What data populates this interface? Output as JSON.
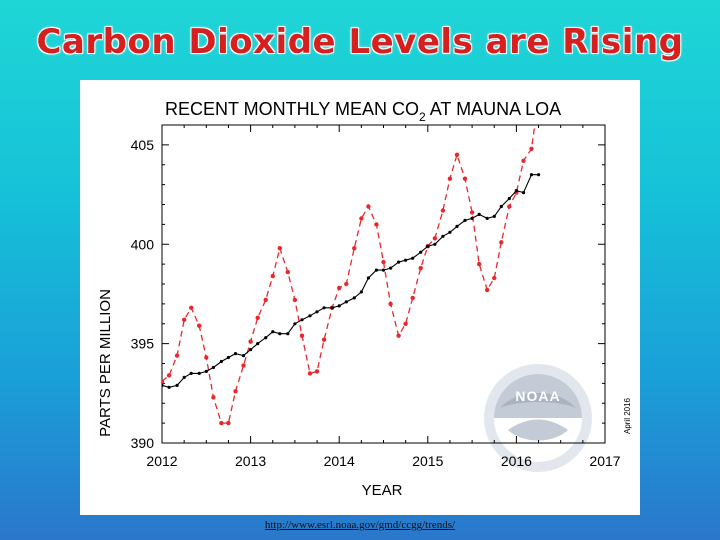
{
  "slide": {
    "title": "Carbon Dioxide Levels are Rising",
    "source_url": "http://www.esrl.noaa.gov/gmd/ccgg/trends/"
  },
  "chart_data": {
    "type": "line",
    "title_main": "RECENT MONTHLY MEAN CO",
    "title_sub": "2",
    "title_tail": " AT MAUNA LOA",
    "xlabel": "YEAR",
    "ylabel": "PARTS PER MILLION",
    "date_stamp": "April 2016",
    "xlim": [
      2012,
      2017
    ],
    "ylim": [
      390,
      406
    ],
    "x_ticks": [
      "2012",
      "2013",
      "2014",
      "2015",
      "2016",
      "2017"
    ],
    "y_ticks": [
      "390",
      "395",
      "400",
      "405"
    ],
    "grid": false,
    "colors": {
      "monthly": "#e8282d",
      "trend": "#000000"
    },
    "series": [
      {
        "key": "monthly",
        "style": "dashed-with-markers",
        "points": [
          [
            2012.0,
            393.1
          ],
          [
            2012.08,
            393.4
          ],
          [
            2012.17,
            394.4
          ],
          [
            2012.25,
            396.2
          ],
          [
            2012.33,
            396.8
          ],
          [
            2012.42,
            395.9
          ],
          [
            2012.5,
            394.3
          ],
          [
            2012.58,
            392.3
          ],
          [
            2012.67,
            391.0
          ],
          [
            2012.75,
            391.0
          ],
          [
            2012.83,
            392.6
          ],
          [
            2012.92,
            393.9
          ],
          [
            2013.0,
            395.1
          ],
          [
            2013.08,
            396.3
          ],
          [
            2013.17,
            397.2
          ],
          [
            2013.25,
            398.4
          ],
          [
            2013.33,
            399.8
          ],
          [
            2013.42,
            398.6
          ],
          [
            2013.5,
            397.2
          ],
          [
            2013.58,
            395.4
          ],
          [
            2013.67,
            393.5
          ],
          [
            2013.75,
            393.6
          ],
          [
            2013.83,
            395.2
          ],
          [
            2013.92,
            396.8
          ],
          [
            2014.0,
            397.8
          ],
          [
            2014.08,
            398.0
          ],
          [
            2014.17,
            399.8
          ],
          [
            2014.25,
            401.3
          ],
          [
            2014.33,
            401.9
          ],
          [
            2014.42,
            401.0
          ],
          [
            2014.5,
            399.1
          ],
          [
            2014.58,
            397.0
          ],
          [
            2014.67,
            395.4
          ],
          [
            2014.75,
            396.0
          ],
          [
            2014.83,
            397.3
          ],
          [
            2014.92,
            398.8
          ],
          [
            2015.0,
            399.9
          ],
          [
            2015.08,
            400.3
          ],
          [
            2015.17,
            401.7
          ],
          [
            2015.25,
            403.3
          ],
          [
            2015.33,
            404.5
          ],
          [
            2015.42,
            403.3
          ],
          [
            2015.5,
            401.6
          ],
          [
            2015.58,
            399.0
          ],
          [
            2015.67,
            397.7
          ],
          [
            2015.75,
            398.3
          ],
          [
            2015.83,
            400.1
          ],
          [
            2015.92,
            401.9
          ],
          [
            2016.0,
            402.6
          ],
          [
            2016.08,
            404.2
          ],
          [
            2016.17,
            404.8
          ],
          [
            2016.25,
            407.4
          ]
        ]
      },
      {
        "key": "trend",
        "style": "solid-with-markers",
        "points": [
          [
            2012.0,
            392.9
          ],
          [
            2012.08,
            392.8
          ],
          [
            2012.17,
            392.9
          ],
          [
            2012.25,
            393.3
          ],
          [
            2012.33,
            393.5
          ],
          [
            2012.42,
            393.5
          ],
          [
            2012.5,
            393.6
          ],
          [
            2012.58,
            393.8
          ],
          [
            2012.67,
            394.1
          ],
          [
            2012.75,
            394.3
          ],
          [
            2012.83,
            394.5
          ],
          [
            2012.92,
            394.4
          ],
          [
            2013.0,
            394.7
          ],
          [
            2013.08,
            395.0
          ],
          [
            2013.17,
            395.3
          ],
          [
            2013.25,
            395.6
          ],
          [
            2013.33,
            395.5
          ],
          [
            2013.42,
            395.5
          ],
          [
            2013.5,
            396.0
          ],
          [
            2013.58,
            396.2
          ],
          [
            2013.67,
            396.4
          ],
          [
            2013.75,
            396.6
          ],
          [
            2013.83,
            396.8
          ],
          [
            2013.92,
            396.8
          ],
          [
            2014.0,
            396.9
          ],
          [
            2014.08,
            397.1
          ],
          [
            2014.17,
            397.3
          ],
          [
            2014.25,
            397.6
          ],
          [
            2014.33,
            398.3
          ],
          [
            2014.42,
            398.7
          ],
          [
            2014.5,
            398.7
          ],
          [
            2014.58,
            398.8
          ],
          [
            2014.67,
            399.1
          ],
          [
            2014.75,
            399.2
          ],
          [
            2014.83,
            399.3
          ],
          [
            2014.92,
            399.6
          ],
          [
            2015.0,
            399.9
          ],
          [
            2015.08,
            400.0
          ],
          [
            2015.17,
            400.4
          ],
          [
            2015.25,
            400.6
          ],
          [
            2015.33,
            400.9
          ],
          [
            2015.42,
            401.2
          ],
          [
            2015.5,
            401.3
          ],
          [
            2015.58,
            401.5
          ],
          [
            2015.67,
            401.3
          ],
          [
            2015.75,
            401.4
          ],
          [
            2015.83,
            401.9
          ],
          [
            2015.92,
            402.3
          ],
          [
            2016.0,
            402.7
          ],
          [
            2016.08,
            402.6
          ],
          [
            2016.17,
            403.5
          ],
          [
            2016.25,
            403.5
          ]
        ]
      }
    ]
  }
}
